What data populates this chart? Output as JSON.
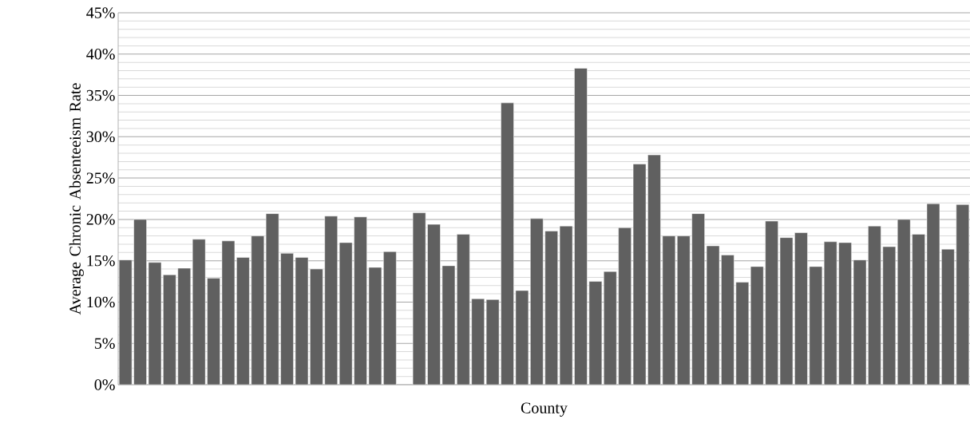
{
  "chart_data": {
    "type": "bar",
    "xlabel": "County",
    "ylabel": "Average Chronic Absenteeism Rate",
    "categories": [
      null,
      null,
      null,
      null,
      null,
      null,
      null,
      null,
      null,
      null,
      null,
      null,
      null,
      null,
      null,
      null,
      null,
      null,
      null,
      null,
      null,
      null,
      null,
      null,
      null,
      null,
      null,
      null,
      null,
      null,
      null,
      null,
      null,
      null,
      null,
      null,
      null,
      null,
      null,
      null,
      null,
      null,
      null,
      null,
      null,
      null,
      null,
      null,
      null,
      null,
      null,
      null,
      null,
      null,
      null,
      null,
      null,
      null
    ],
    "values": [
      15.1,
      20.0,
      14.8,
      13.3,
      14.1,
      17.6,
      12.9,
      17.4,
      15.4,
      18.0,
      20.7,
      15.9,
      15.4,
      14.0,
      20.4,
      17.2,
      20.3,
      14.2,
      16.1,
      null,
      20.8,
      19.4,
      14.4,
      18.2,
      10.4,
      10.3,
      34.1,
      11.4,
      20.1,
      18.6,
      19.2,
      38.3,
      12.5,
      13.7,
      19.0,
      26.7,
      27.8,
      18.0,
      18.0,
      20.7,
      16.8,
      15.7,
      12.4,
      14.3,
      19.8,
      17.8,
      18.4,
      14.3,
      17.3,
      17.2,
      15.1,
      19.2,
      16.7,
      20.0,
      18.2,
      21.9,
      16.4,
      21.8
    ],
    "color": "#606060",
    "ylim": [
      0,
      45
    ],
    "yticks": [
      {
        "value": 0,
        "label": "0%"
      },
      {
        "value": 5,
        "label": "5%"
      },
      {
        "value": 10,
        "label": "10%"
      },
      {
        "value": 15,
        "label": "15%"
      },
      {
        "value": 20,
        "label": "20%"
      },
      {
        "value": 25,
        "label": "25%"
      },
      {
        "value": 30,
        "label": "30%"
      },
      {
        "value": 35,
        "label": "35%"
      },
      {
        "value": 40,
        "label": "40%"
      },
      {
        "value": 45,
        "label": "45%"
      }
    ],
    "grid": "y"
  }
}
